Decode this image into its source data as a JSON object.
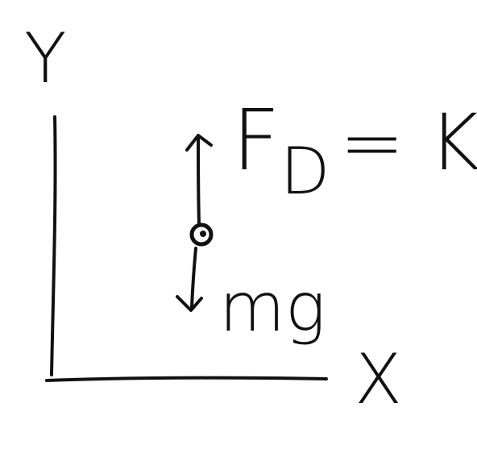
{
  "axes": {
    "y_label": "Y",
    "x_label": "X"
  },
  "forces": {
    "drag": {
      "symbol": "F",
      "subscript": "D",
      "equation": "= KV"
    },
    "weight": {
      "label": "mg"
    }
  }
}
